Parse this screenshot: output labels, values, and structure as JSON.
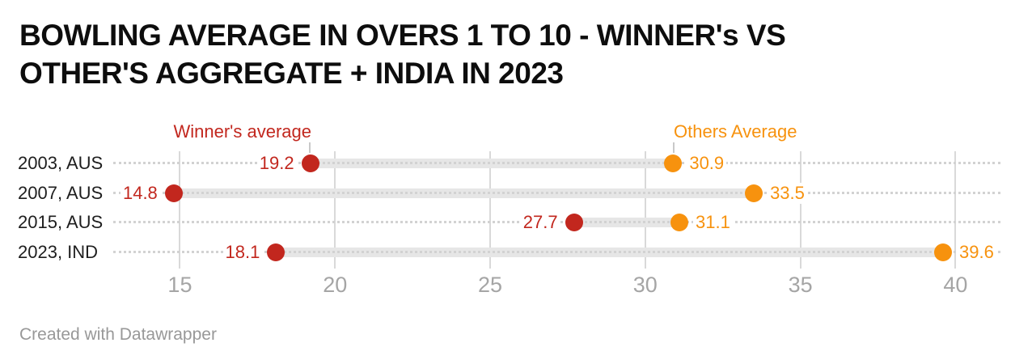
{
  "title": {
    "full": "BOWLING AVERAGE IN OVERS 1 TO 10 - WINNER's VS OTHER'S AGGREGATE + INDIA IN 2023",
    "line1": "BOWLING AVERAGE IN OVERS 1 TO 10 - WINNER's VS",
    "line2": "OTHER'S AGGREGATE + INDIA IN 2023"
  },
  "legend": {
    "winner": "Winner's average",
    "others": "Others Average"
  },
  "footer": {
    "attribution": "Created with Datawrapper"
  },
  "colors": {
    "winner": "#c2271e",
    "others": "#f7920e",
    "bar": "#e6e6e6",
    "grid": "#d9d9d9",
    "guide_dots": "#d2d2d2",
    "axis_text": "#a5a5a5",
    "row_label_text": "#1e1e1e",
    "title_text": "#0d0d0d",
    "attribution_text": "#989898"
  },
  "chart_data": {
    "type": "dumbbell",
    "title": "BOWLING AVERAGE IN OVERS 1 TO 10 - WINNER's VS OTHER'S AGGREGATE + INDIA IN 2023",
    "categories": [
      "2003, AUS",
      "2007, AUS",
      "2015, AUS",
      "2023, IND"
    ],
    "series": [
      {
        "name": "Winner's average",
        "color": "#c2271e",
        "values": [
          19.2,
          14.8,
          27.7,
          18.1
        ]
      },
      {
        "name": "Others Average",
        "color": "#f7920e",
        "values": [
          30.9,
          33.5,
          31.1,
          39.6
        ]
      }
    ],
    "x_ticks": [
      15,
      20,
      25,
      30,
      35,
      40
    ],
    "xlim": [
      12.85,
      41.45
    ],
    "xlabel": "",
    "ylabel": "",
    "grid": "vertical",
    "legend_position": "inline-above-first-row",
    "value_labels": "shown"
  }
}
